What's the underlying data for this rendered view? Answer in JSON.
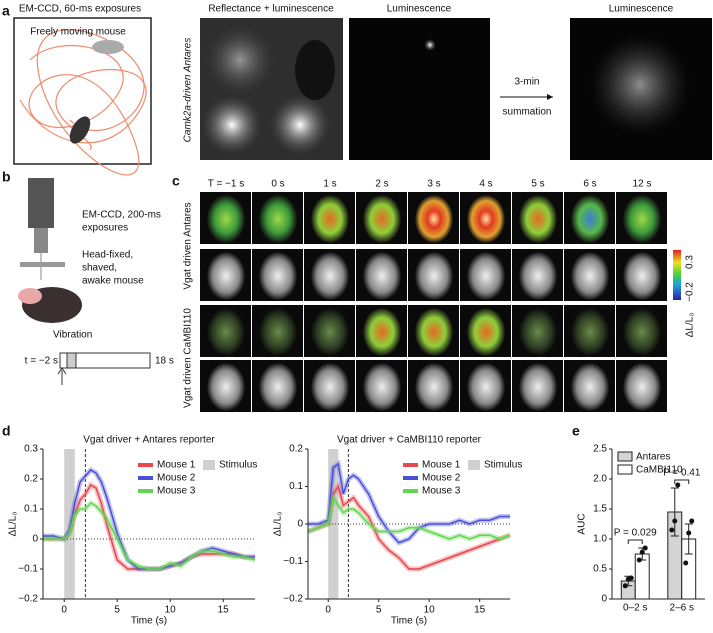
{
  "panels": {
    "letters": [
      "a",
      "b",
      "c",
      "d",
      "e"
    ],
    "a": {
      "camera": "EM-CCD, 60-ms exposures",
      "arena": "Freely moving mouse",
      "image_titles": [
        "Reflectance + luminescence",
        "Luminescence",
        "Luminescence"
      ],
      "row_label": "Camk2a-driven Antares",
      "arrow_label": [
        "3-min",
        "summation"
      ]
    },
    "b": {
      "camera": [
        "EM-CCD, 200-ms",
        "exposures"
      ],
      "mouse": [
        "Head-fixed,",
        "shaved,",
        "awake mouse"
      ],
      "stimulus": "Vibration",
      "start": "t = −2 s",
      "end": "18 s"
    },
    "c": {
      "times": [
        "T = −1 s",
        "0 s",
        "1 s",
        "2 s",
        "3 s",
        "4 s",
        "5 s",
        "6 s",
        "12 s"
      ],
      "row_labels": [
        "Vgat driven Antares",
        "Vgat driven CaMBI110"
      ],
      "colorbar": {
        "max": "0.3",
        "min": "−0.2",
        "label": "ΔL/L₀"
      }
    }
  },
  "chart_data": [
    {
      "type": "line",
      "title": "Vgat driver + Antares reporter",
      "x_label": "Time (s)",
      "y_label": "ΔL/L₀",
      "x": [
        -2,
        -1,
        0,
        0.5,
        1,
        1.5,
        2,
        2.5,
        3,
        3.5,
        4,
        5,
        6,
        7,
        8,
        9,
        10,
        11,
        12,
        13,
        14,
        15,
        16,
        17,
        18
      ],
      "series": [
        {
          "name": "Mouse 1",
          "color": "#e8474e",
          "values": [
            0,
            0,
            0,
            0.02,
            0.08,
            0.13,
            0.15,
            0.18,
            0.17,
            0.12,
            0.05,
            -0.07,
            -0.1,
            -0.1,
            -0.1,
            -0.1,
            -0.09,
            -0.08,
            -0.06,
            -0.05,
            -0.05,
            -0.05,
            -0.05,
            -0.06,
            -0.06
          ]
        },
        {
          "name": "Mouse 2",
          "color": "#4a4fd6",
          "values": [
            0.01,
            0.01,
            0,
            0.03,
            0.12,
            0.19,
            0.21,
            0.23,
            0.22,
            0.19,
            0.14,
            0.02,
            -0.07,
            -0.1,
            -0.1,
            -0.1,
            -0.09,
            -0.08,
            -0.06,
            -0.04,
            -0.03,
            -0.04,
            -0.05,
            -0.06,
            -0.06
          ]
        },
        {
          "name": "Mouse 3",
          "color": "#62d64f",
          "values": [
            0,
            0,
            0,
            0.02,
            0.08,
            0.1,
            0.1,
            0.12,
            0.11,
            0.09,
            0.07,
            0,
            -0.07,
            -0.09,
            -0.1,
            -0.1,
            -0.08,
            -0.09,
            -0.06,
            -0.04,
            -0.04,
            -0.05,
            -0.06,
            -0.06,
            -0.07
          ]
        }
      ],
      "stimulus": {
        "name": "Stimulus",
        "range": [
          0,
          1
        ],
        "color": "#d0d0d0"
      },
      "marker_x": 2,
      "xlim": [
        -2,
        18
      ],
      "xticks": [
        0,
        5,
        10,
        15
      ],
      "ylim": [
        -0.2,
        0.3
      ],
      "yticks": [
        {
          "value": -0.2,
          "label": "−0.2"
        },
        {
          "value": -0.1,
          "label": "−0.1"
        },
        0,
        0.1,
        0.2,
        0.3
      ]
    },
    {
      "type": "line",
      "title": "Vgat driver + CaMBI110 reporter",
      "x_label": "Time (s)",
      "y_label": "ΔL/L₀",
      "x": [
        -2,
        -1,
        0,
        0.5,
        1,
        1.5,
        2,
        2.5,
        3,
        4,
        5,
        6,
        7,
        8,
        9,
        10,
        11,
        12,
        13,
        14,
        15,
        16,
        17,
        18
      ],
      "series": [
        {
          "name": "Mouse 1",
          "color": "#e8474e",
          "values": [
            -0.02,
            -0.01,
            0,
            0.08,
            0.1,
            0.05,
            0.06,
            0.07,
            0.05,
            0.02,
            -0.04,
            -0.07,
            -0.09,
            -0.12,
            -0.12,
            -0.11,
            -0.1,
            -0.09,
            -0.08,
            -0.07,
            -0.06,
            -0.05,
            -0.04,
            -0.03
          ]
        },
        {
          "name": "Mouse 2",
          "color": "#4a4fd6",
          "values": [
            0,
            0,
            0.01,
            0.15,
            0.16,
            0.08,
            0.12,
            0.13,
            0.12,
            0.08,
            0.02,
            -0.02,
            -0.05,
            -0.04,
            -0.01,
            0,
            0,
            0,
            0.01,
            0,
            0.01,
            0.01,
            0.02,
            0.02
          ]
        },
        {
          "name": "Mouse 3",
          "color": "#62d64f",
          "values": [
            -0.02,
            -0.01,
            0,
            0.07,
            0.05,
            0.03,
            0.04,
            0.04,
            0.03,
            0,
            -0.02,
            -0.02,
            -0.02,
            -0.01,
            -0.01,
            -0.02,
            -0.03,
            -0.04,
            -0.03,
            -0.04,
            -0.03,
            -0.03,
            -0.04,
            -0.03
          ]
        }
      ],
      "stimulus": {
        "name": "Stimulus",
        "range": [
          0,
          1
        ],
        "color": "#d0d0d0"
      },
      "marker_x": 2,
      "xlim": [
        -2,
        18
      ],
      "xticks": [
        0,
        5,
        10,
        15
      ],
      "ylim": [
        -0.2,
        0.2
      ],
      "yticks": [
        {
          "value": -0.2,
          "label": "−0.2"
        },
        {
          "value": -0.1,
          "label": "−0.1"
        },
        0,
        0.1,
        0.2
      ]
    },
    {
      "type": "bar",
      "y_label": "AUC",
      "categories": [
        "0–2 s",
        "2–6 s"
      ],
      "series": [
        {
          "name": "Antares",
          "color": "#d4d4d4",
          "values": [
            0.3,
            1.45
          ],
          "errors": [
            0.08,
            0.4
          ],
          "points": [
            [
              0.22,
              0.33,
              0.35
            ],
            [
              1.15,
              1.3,
              1.9
            ]
          ]
        },
        {
          "name": "CaMBI110",
          "color": "#ffffff",
          "values": [
            0.75,
            1.0
          ],
          "errors": [
            0.1,
            0.25
          ],
          "points": [
            [
              0.65,
              0.78,
              0.85
            ],
            [
              0.6,
              1.1,
              1.3
            ]
          ]
        }
      ],
      "annotations": [
        "P = 0.029",
        "P = 0.41"
      ],
      "ylim": [
        0,
        2.5
      ],
      "yticks": [
        0,
        0.5,
        {
          "value": 1,
          "label": "1.0"
        },
        1.5,
        {
          "value": 2,
          "label": "2.0"
        },
        2.5
      ]
    }
  ]
}
